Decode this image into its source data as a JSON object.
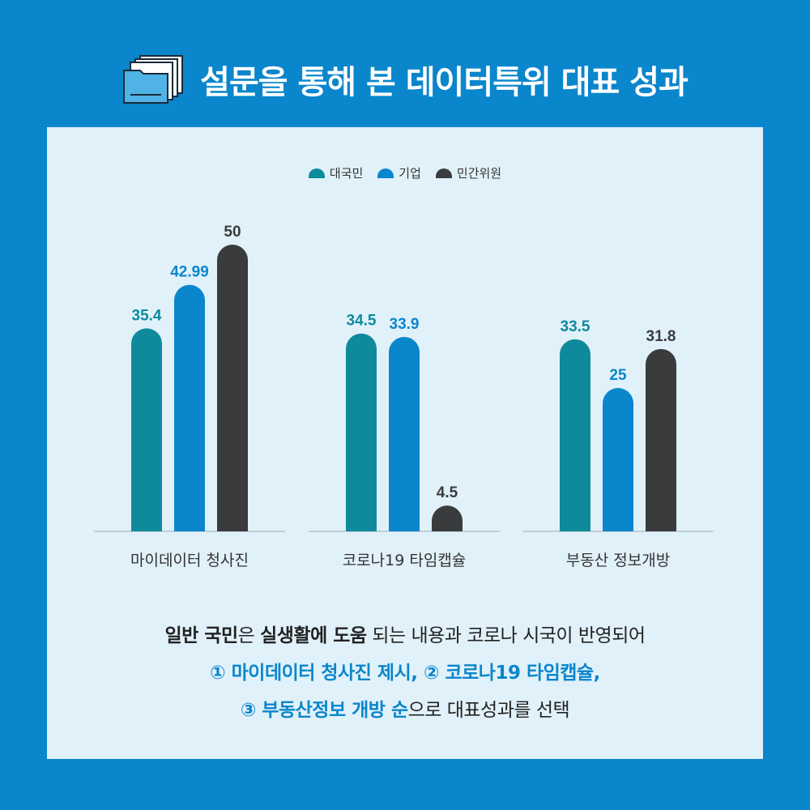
{
  "header": {
    "title": "설문을 통해 본 데이터특위 대표 성과",
    "icon": "document-stack-icon"
  },
  "colors": {
    "background": "#0a86cc",
    "panel": "#e1f1fa",
    "series": [
      "#0f8a9c",
      "#0a86cc",
      "#3a3b3d"
    ]
  },
  "chart_data": {
    "type": "bar",
    "categories": [
      "마이데이터 청사진",
      "코로나19 타임캡슐",
      "부동산 정보개방"
    ],
    "series": [
      {
        "name": "대국민",
        "values": [
          35.4,
          34.5,
          33.5
        ],
        "labels": [
          "35.4",
          "34.5",
          "33.5"
        ]
      },
      {
        "name": "기업",
        "values": [
          42.99,
          33.9,
          25
        ],
        "labels": [
          "42.99",
          "33.9",
          "25"
        ]
      },
      {
        "name": "민간위원",
        "values": [
          50,
          4.5,
          31.8
        ],
        "labels": [
          "50",
          "4.5",
          "31.8"
        ]
      }
    ],
    "ylim": [
      0,
      50
    ],
    "grid": false,
    "legend_position": "top"
  },
  "description": {
    "line1": {
      "p1": "일반 국민",
      "p2": "은 ",
      "p3": "실생활에 도움",
      "p4": " 되는 내용과 코로나 시국이 반영되어"
    },
    "line2": "① 마이데이터 청사진 제시, ② 코로나19 타임캡슐,",
    "line3": {
      "p1": "③ 부동산정보 개방 순",
      "p2": "으로 대표성과를 선택"
    }
  }
}
